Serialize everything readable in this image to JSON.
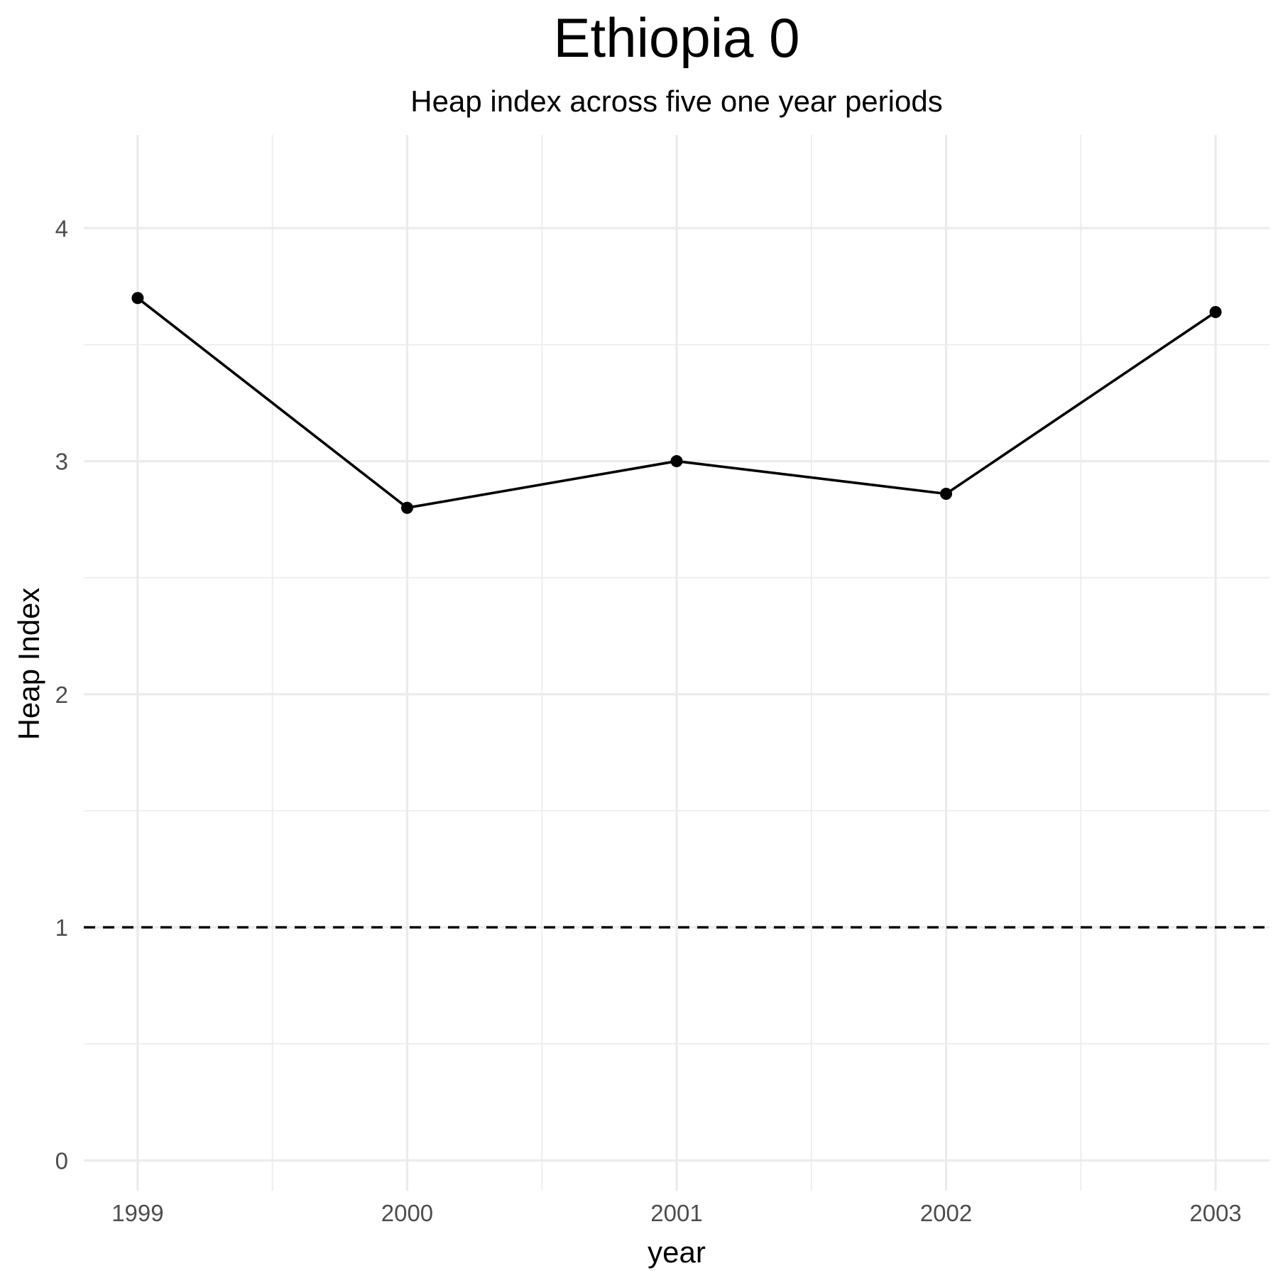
{
  "chart_data": {
    "type": "line",
    "title": "Ethiopia 0",
    "subtitle": "Heap index across five one year periods",
    "xlabel": "year",
    "ylabel": "Heap Index",
    "x": [
      1999,
      2000,
      2001,
      2002,
      2003
    ],
    "x_tick_labels": [
      "1999",
      "2000",
      "2001",
      "2002",
      "2003"
    ],
    "y_ticks": [
      0,
      1,
      2,
      3,
      4
    ],
    "y_tick_labels": [
      "0",
      "1",
      "2",
      "3",
      "4"
    ],
    "xlim": [
      1998.8,
      2003.2
    ],
    "ylim": [
      -0.13,
      4.4
    ],
    "grid": true,
    "series": [
      {
        "values": [
          3.7,
          2.8,
          3.0,
          2.86,
          3.64
        ],
        "color": "#000000",
        "marker": "circle"
      }
    ],
    "reference_line": {
      "y": 1,
      "style": "dashed",
      "color": "#000000"
    }
  }
}
